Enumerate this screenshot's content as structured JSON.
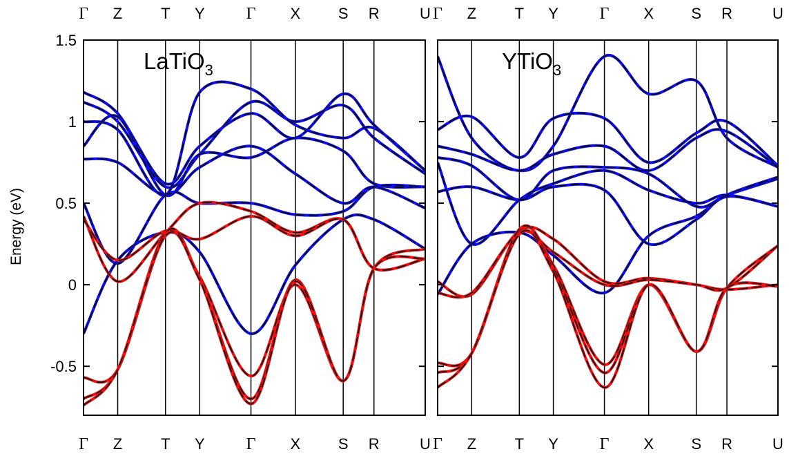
{
  "chart_data": {
    "type": "line",
    "ylabel": "Energy (eV)",
    "ylim": [
      -0.8,
      1.5
    ],
    "yticks": [
      -0.5,
      0,
      0.5,
      1,
      1.5
    ],
    "ytick_labels": [
      "-0.5",
      "0",
      "0.5",
      "1",
      "1.5"
    ],
    "x_ticks": [
      "Γ",
      "Z",
      "T",
      "Y",
      "Γ",
      "X",
      "S",
      "R",
      "U"
    ],
    "x_tick_positions": [
      0,
      1,
      2.4,
      3.4,
      4.9,
      6.2,
      7.6,
      8.5,
      10
    ],
    "xlim": [
      0,
      10
    ],
    "colors": {
      "upper_bands": "#1010ee",
      "lower_bands": "#ee1010",
      "fit": "#000000"
    },
    "panels": [
      {
        "title": "LaTiO",
        "title_sub": "3",
        "series": [
          {
            "name": "",
            "color": "blue",
            "x": [
              0,
              1,
              2.4,
              3.4,
              4.9,
              6.2,
              7.6,
              8.5,
              10
            ],
            "y": [
              1.18,
              1.05,
              0.62,
              0.85,
              1.05,
              0.9,
              1.17,
              0.98,
              0.7
            ]
          },
          {
            "name": "",
            "color": "blue",
            "x": [
              0,
              1,
              2.4,
              3.4,
              4.9,
              6.2,
              7.6,
              8.5,
              10
            ],
            "y": [
              1.12,
              1.0,
              0.6,
              0.8,
              1.12,
              1.0,
              1.1,
              0.9,
              0.68
            ]
          },
          {
            "name": "",
            "color": "blue",
            "x": [
              0,
              1,
              2.4,
              3.4,
              4.9,
              6.2,
              7.6,
              8.5,
              10
            ],
            "y": [
              1.0,
              0.95,
              0.55,
              1.18,
              1.2,
              0.98,
              0.9,
              0.96,
              0.7
            ]
          },
          {
            "name": "",
            "color": "blue",
            "x": [
              0,
              1,
              2.4,
              3.4,
              4.9,
              6.2,
              7.6,
              8.5,
              10
            ],
            "y": [
              0.85,
              1.03,
              0.55,
              0.8,
              0.78,
              0.9,
              0.82,
              0.62,
              0.6
            ]
          },
          {
            "name": "",
            "color": "blue",
            "x": [
              0,
              1,
              2.4,
              3.4,
              4.9,
              6.2,
              7.6,
              8.5,
              10
            ],
            "y": [
              0.77,
              0.75,
              0.55,
              0.72,
              0.85,
              0.68,
              0.5,
              0.6,
              0.47
            ]
          },
          {
            "name": "",
            "color": "blue",
            "x": [
              0,
              1,
              2.4,
              3.4,
              4.9,
              6.2,
              7.6,
              8.5,
              10
            ],
            "y": [
              0.5,
              0.13,
              0.55,
              0.5,
              0.5,
              0.43,
              0.45,
              0.6,
              0.6
            ]
          },
          {
            "name": "",
            "color": "blue",
            "x": [
              0,
              1,
              2.4,
              3.4,
              4.9,
              6.2,
              7.6,
              8.5,
              10
            ],
            "y": [
              -0.3,
              0.15,
              0.32,
              0.2,
              -0.3,
              0.12,
              0.4,
              0.4,
              0.22
            ]
          },
          {
            "name": "",
            "color": "red",
            "x": [
              0,
              1,
              2.4,
              3.4,
              4.9,
              6.2,
              7.6,
              8.5,
              10
            ],
            "y": [
              0.42,
              0.02,
              0.32,
              0.5,
              0.45,
              0.32,
              0.4,
              0.1,
              0.16
            ]
          },
          {
            "name": "",
            "color": "red",
            "x": [
              0,
              1,
              2.4,
              3.4,
              4.9,
              6.2,
              7.6,
              8.5,
              10
            ],
            "y": [
              0.4,
              0.15,
              0.33,
              0.28,
              0.42,
              0.3,
              0.4,
              0.1,
              0.16
            ]
          },
          {
            "name": "",
            "color": "red",
            "x": [
              0,
              1,
              2.4,
              3.4,
              4.9,
              6.2,
              7.6,
              8.5,
              10
            ],
            "y": [
              -0.57,
              -0.52,
              0.3,
              0.05,
              -0.56,
              0.0,
              -0.59,
              0.1,
              0.22
            ]
          },
          {
            "name": "",
            "color": "red",
            "x": [
              0,
              1,
              2.4,
              3.4,
              4.9,
              6.2,
              7.6,
              8.5,
              10
            ],
            "y": [
              -0.7,
              -0.52,
              0.32,
              0.04,
              -0.7,
              0.03,
              -0.59,
              0.1,
              0.16
            ]
          },
          {
            "name": "",
            "color": "red",
            "x": [
              0,
              1,
              2.4,
              3.4,
              4.9,
              6.2,
              7.6,
              8.5,
              10
            ],
            "y": [
              -0.74,
              -0.52,
              0.3,
              0.03,
              -0.73,
              0.02,
              -0.59,
              0.1,
              0.16
            ]
          }
        ]
      },
      {
        "title": "YTiO",
        "title_sub": "3",
        "series": [
          {
            "name": "",
            "color": "blue",
            "x": [
              0,
              1,
              2.4,
              3.4,
              4.9,
              6.2,
              7.6,
              8.5,
              10
            ],
            "y": [
              1.4,
              0.9,
              0.7,
              0.85,
              1.4,
              1.17,
              1.25,
              0.9,
              0.72
            ]
          },
          {
            "name": "",
            "color": "blue",
            "x": [
              0,
              1,
              2.4,
              3.4,
              4.9,
              6.2,
              7.6,
              8.5,
              10
            ],
            "y": [
              0.95,
              1.03,
              0.78,
              1.02,
              1.02,
              0.75,
              0.93,
              1.0,
              0.73
            ]
          },
          {
            "name": "",
            "color": "blue",
            "x": [
              0,
              1,
              2.4,
              3.4,
              4.9,
              6.2,
              7.6,
              8.5,
              10
            ],
            "y": [
              0.85,
              0.8,
              0.7,
              0.8,
              0.85,
              0.7,
              0.9,
              0.94,
              0.72
            ]
          },
          {
            "name": "",
            "color": "blue",
            "x": [
              0,
              1,
              2.4,
              3.4,
              4.9,
              6.2,
              7.6,
              8.5,
              10
            ],
            "y": [
              0.78,
              0.73,
              0.52,
              0.7,
              0.72,
              0.68,
              0.48,
              0.55,
              0.65
            ]
          },
          {
            "name": "",
            "color": "blue",
            "x": [
              0,
              1,
              2.4,
              3.4,
              4.9,
              6.2,
              7.6,
              8.5,
              10
            ],
            "y": [
              0.75,
              0.25,
              0.52,
              0.62,
              0.7,
              0.58,
              0.5,
              0.55,
              0.48
            ]
          },
          {
            "name": "",
            "color": "blue",
            "x": [
              0,
              1,
              2.4,
              3.4,
              4.9,
              6.2,
              7.6,
              8.5,
              10
            ],
            "y": [
              0.57,
              0.6,
              0.52,
              0.6,
              0.58,
              0.25,
              0.4,
              0.54,
              0.48
            ]
          },
          {
            "name": "",
            "color": "blue",
            "x": [
              0,
              1,
              2.4,
              3.4,
              4.9,
              6.2,
              7.6,
              8.5,
              10
            ],
            "y": [
              -0.06,
              0.25,
              0.32,
              0.18,
              -0.05,
              0.3,
              0.42,
              0.55,
              0.66
            ]
          },
          {
            "name": "",
            "color": "red",
            "x": [
              0,
              1,
              2.4,
              3.4,
              4.9,
              6.2,
              7.6,
              8.5,
              10
            ],
            "y": [
              0.02,
              -0.06,
              0.33,
              0.28,
              0.02,
              0.04,
              0.0,
              -0.03,
              0.0
            ]
          },
          {
            "name": "",
            "color": "red",
            "x": [
              0,
              1,
              2.4,
              3.4,
              4.9,
              6.2,
              7.6,
              8.5,
              10
            ],
            "y": [
              -0.05,
              -0.05,
              0.32,
              0.2,
              0.0,
              0.03,
              0.0,
              -0.02,
              0.24
            ]
          },
          {
            "name": "",
            "color": "red",
            "x": [
              0,
              1,
              2.4,
              3.4,
              4.9,
              6.2,
              7.6,
              8.5,
              10
            ],
            "y": [
              -0.48,
              -0.42,
              0.33,
              0.12,
              -0.49,
              0.0,
              -0.41,
              -0.02,
              0.24
            ]
          },
          {
            "name": "",
            "color": "red",
            "x": [
              0,
              1,
              2.4,
              3.4,
              4.9,
              6.2,
              7.6,
              8.5,
              10
            ],
            "y": [
              -0.54,
              -0.42,
              0.34,
              0.1,
              -0.54,
              0.0,
              -0.41,
              -0.02,
              -0.01
            ]
          },
          {
            "name": "",
            "color": "red",
            "x": [
              0,
              1,
              2.4,
              3.4,
              4.9,
              6.2,
              7.6,
              8.5,
              10
            ],
            "y": [
              -0.63,
              -0.42,
              0.31,
              0.08,
              -0.63,
              0.0,
              -0.41,
              -0.02,
              -0.01
            ]
          }
        ]
      }
    ]
  }
}
